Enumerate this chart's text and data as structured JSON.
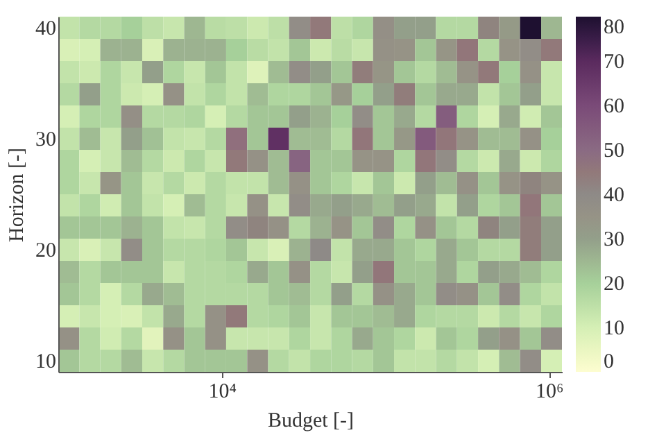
{
  "chart_data": {
    "type": "heatmap",
    "xlabel": "Budget [-]",
    "ylabel": "Horizon [-]",
    "log": "x",
    "xlim": [
      1000,
      1200000
    ],
    "xticks": [
      {
        "value": 10000,
        "label": "10⁴"
      },
      {
        "value": 1000000,
        "label": "10⁶"
      }
    ],
    "x": [
      1160,
      1560,
      2090,
      2810,
      3780,
      5080,
      6820,
      9170,
      12300,
      16600,
      22200,
      29900,
      40200,
      54000,
      72500,
      97400,
      131000,
      176000,
      236000,
      318000,
      427000,
      574000,
      771000,
      1040000
    ],
    "y_categories": [
      "40",
      null,
      null,
      null,
      null,
      "30",
      null,
      null,
      null,
      null,
      "20",
      null,
      null,
      null,
      null,
      "10"
    ],
    "clim": [
      0,
      80
    ],
    "cticks": [
      0,
      10,
      20,
      30,
      40,
      50,
      60,
      70,
      80
    ],
    "cells": [
      [
        14,
        17,
        17,
        20,
        15,
        13,
        25,
        16,
        15,
        12,
        15,
        38,
        45,
        15,
        18,
        37,
        30,
        30,
        17,
        17,
        42,
        32,
        80,
        25
      ],
      [
        9,
        10,
        26,
        26,
        9,
        26,
        26,
        26,
        20,
        16,
        14,
        22,
        12,
        16,
        13,
        36,
        35,
        22,
        34,
        46,
        17,
        35,
        38,
        45
      ],
      [
        14,
        12,
        18,
        13,
        30,
        18,
        13,
        22,
        14,
        8,
        24,
        38,
        30,
        22,
        44,
        34,
        22,
        17,
        24,
        35,
        45,
        20,
        36,
        13
      ],
      [
        17,
        30,
        18,
        12,
        10,
        36,
        14,
        18,
        14,
        24,
        18,
        18,
        22,
        33,
        20,
        30,
        44,
        22,
        28,
        28,
        14,
        22,
        30,
        13
      ],
      [
        10,
        18,
        18,
        37,
        17,
        17,
        18,
        10,
        17,
        22,
        22,
        30,
        26,
        20,
        38,
        22,
        28,
        17,
        54,
        18,
        10,
        28,
        11,
        22
      ],
      [
        14,
        24,
        13,
        30,
        23,
        14,
        13,
        17,
        48,
        22,
        68,
        24,
        24,
        17,
        46,
        22,
        33,
        55,
        46,
        35,
        24,
        24,
        36,
        20
      ],
      [
        18,
        10,
        13,
        24,
        17,
        12,
        18,
        13,
        45,
        36,
        24,
        52,
        22,
        22,
        35,
        35,
        18,
        46,
        38,
        17,
        12,
        28,
        12,
        18
      ],
      [
        18,
        13,
        34,
        22,
        13,
        17,
        12,
        17,
        14,
        14,
        24,
        36,
        22,
        18,
        13,
        22,
        12,
        30,
        24,
        36,
        22,
        35,
        42,
        35
      ],
      [
        14,
        18,
        11,
        22,
        14,
        10,
        24,
        17,
        13,
        36,
        13,
        38,
        28,
        30,
        28,
        24,
        30,
        28,
        14,
        30,
        18,
        22,
        46,
        22
      ],
      [
        22,
        22,
        22,
        26,
        22,
        14,
        13,
        17,
        38,
        42,
        36,
        17,
        26,
        35,
        22,
        38,
        18,
        36,
        22,
        17,
        42,
        30,
        44,
        30
      ],
      [
        13,
        9,
        13,
        38,
        22,
        17,
        17,
        18,
        22,
        13,
        9,
        26,
        40,
        14,
        28,
        28,
        22,
        18,
        28,
        22,
        17,
        17,
        44,
        30
      ],
      [
        24,
        17,
        22,
        22,
        22,
        13,
        17,
        17,
        18,
        28,
        22,
        36,
        17,
        13,
        30,
        46,
        22,
        22,
        28,
        18,
        30,
        28,
        24,
        18
      ],
      [
        22,
        17,
        10,
        17,
        28,
        24,
        17,
        17,
        17,
        17,
        22,
        24,
        17,
        30,
        17,
        36,
        28,
        22,
        38,
        36,
        22,
        38,
        18,
        14
      ],
      [
        10,
        13,
        10,
        9,
        14,
        28,
        17,
        36,
        45,
        17,
        18,
        22,
        13,
        22,
        22,
        24,
        28,
        18,
        17,
        17,
        12,
        17,
        13,
        18
      ],
      [
        36,
        17,
        11,
        17,
        7,
        36,
        22,
        36,
        13,
        13,
        13,
        18,
        13,
        18,
        28,
        22,
        18,
        12,
        22,
        18,
        30,
        36,
        22,
        38
      ],
      [
        22,
        17,
        17,
        24,
        13,
        17,
        22,
        22,
        22,
        36,
        17,
        14,
        18,
        18,
        17,
        22,
        14,
        14,
        17,
        14,
        10,
        24,
        38,
        10
      ]
    ]
  }
}
